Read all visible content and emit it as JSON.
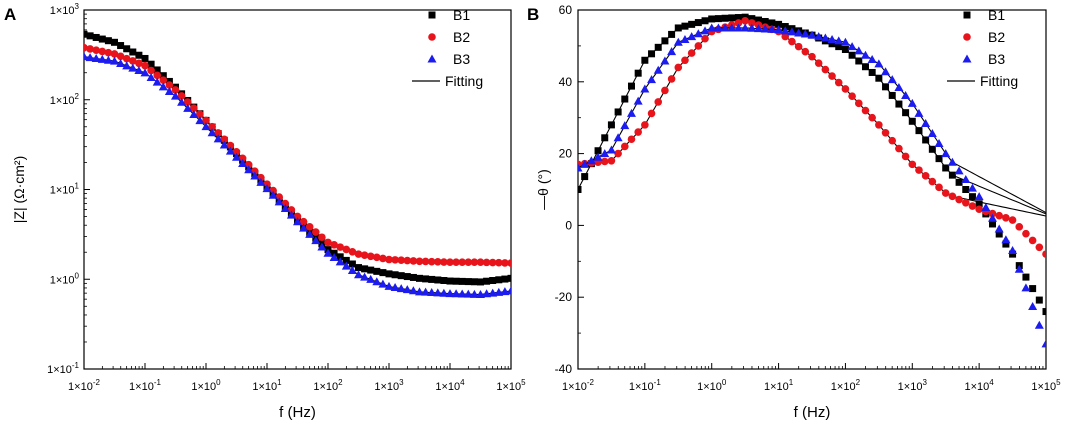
{
  "panels": [
    {
      "letter": "A",
      "chart_data": {
        "type": "scatter",
        "title": "",
        "xlabel": "f (Hz)",
        "ylabel": "|Z| (Ω·cm²)",
        "xscale": "log",
        "yscale": "log",
        "xlim_exp": [
          -2,
          5
        ],
        "ylim_exp": [
          -1,
          3
        ],
        "xticks": [
          {
            "base": "1×10",
            "exp": "-2"
          },
          {
            "base": "1×10",
            "exp": "-1"
          },
          {
            "base": "1×10",
            "exp": "0"
          },
          {
            "base": "1×10",
            "exp": "1"
          },
          {
            "base": "1×10",
            "exp": "2"
          },
          {
            "base": "1×10",
            "exp": "3"
          },
          {
            "base": "1×10",
            "exp": "4"
          },
          {
            "base": "1×10",
            "exp": "5"
          }
        ],
        "yticks": [
          {
            "base": "1×10",
            "exp": "-1"
          },
          {
            "base": "1×10",
            "exp": "0"
          },
          {
            "base": "1×10",
            "exp": "1"
          },
          {
            "base": "1×10",
            "exp": "2"
          },
          {
            "base": "1×10",
            "exp": "3"
          }
        ],
        "legend_position": "top-right",
        "series": [
          {
            "name": "B1",
            "color": "#000000",
            "marker": "square",
            "x_log": [
              -2,
              -1.5,
              -1,
              -0.5,
              0,
              0.5,
              1,
              1.5,
              2,
              2.5,
              3,
              3.5,
              4,
              4.5,
              5
            ],
            "y_log": [
              2.73,
              2.64,
              2.46,
              2.14,
              1.77,
              1.4,
              1.03,
              0.65,
              0.33,
              0.13,
              0.06,
              0.01,
              -0.02,
              -0.03,
              0.01
            ]
          },
          {
            "name": "B2",
            "color": "#e8141b",
            "marker": "circle",
            "x_log": [
              -2,
              -1.5,
              -1,
              -0.5,
              0,
              0.5,
              1,
              1.5,
              2,
              2.5,
              3,
              3.5,
              4,
              4.5,
              5
            ],
            "y_log": [
              2.58,
              2.51,
              2.38,
              2.11,
              1.77,
              1.42,
              1.06,
              0.7,
              0.41,
              0.28,
              0.22,
              0.2,
              0.19,
              0.19,
              0.18
            ]
          },
          {
            "name": "B3",
            "color": "#1c1cf0",
            "marker": "triangle",
            "x_log": [
              -2,
              -1.5,
              -1,
              -0.5,
              0,
              0.5,
              1,
              1.5,
              2,
              2.5,
              3,
              3.5,
              4,
              4.5,
              5
            ],
            "y_log": [
              2.48,
              2.43,
              2.3,
              2.04,
              1.7,
              1.36,
              1.01,
              0.64,
              0.29,
              0.05,
              -0.08,
              -0.14,
              -0.16,
              -0.17,
              -0.13
            ]
          }
        ],
        "fitting": {
          "name": "Fitting",
          "color": "#000000"
        }
      }
    },
    {
      "letter": "B",
      "chart_data": {
        "type": "scatter",
        "title": "",
        "xlabel": "f (Hz)",
        "ylabel": "—θ (°)",
        "xscale": "log",
        "yscale": "linear",
        "xlim_exp": [
          -2,
          5
        ],
        "ylim": [
          -40,
          60
        ],
        "xticks": [
          {
            "base": "1×10",
            "exp": "-2"
          },
          {
            "base": "1×10",
            "exp": "-1"
          },
          {
            "base": "1×10",
            "exp": "0"
          },
          {
            "base": "1×10",
            "exp": "1"
          },
          {
            "base": "1×10",
            "exp": "2"
          },
          {
            "base": "1×10",
            "exp": "3"
          },
          {
            "base": "1×10",
            "exp": "4"
          },
          {
            "base": "1×10",
            "exp": "5"
          }
        ],
        "yticks": [
          "-40",
          "-20",
          "0",
          "20",
          "40",
          "60"
        ],
        "legend_position": "top-right",
        "series": [
          {
            "name": "B1",
            "color": "#000000",
            "marker": "square",
            "x_log": [
              -2,
              -1.5,
              -1,
              -0.5,
              0,
              0.5,
              1,
              1.5,
              2,
              2.5,
              3,
              3.5,
              4,
              4.5,
              5
            ],
            "y": [
              10,
              28,
              46,
              55,
              57.5,
              58,
              56,
              53,
              49,
              41,
              29,
              16,
              6,
              -8,
              -24
            ]
          },
          {
            "name": "B2",
            "color": "#e8141b",
            "marker": "circle",
            "x_log": [
              -2,
              -1.5,
              -1,
              -0.5,
              0,
              0.5,
              1,
              1.5,
              2,
              2.5,
              3,
              3.5,
              4,
              4.5,
              5
            ],
            "y": [
              17,
              18,
              28,
              44,
              54,
              57,
              54,
              47,
              38,
              28,
              17,
              9,
              4.5,
              1.5,
              -8
            ]
          },
          {
            "name": "B3",
            "color": "#1c1cf0",
            "marker": "triangle",
            "x_log": [
              -2,
              -1.5,
              -1,
              -0.5,
              0,
              0.5,
              1,
              1.5,
              2,
              2.5,
              3,
              3.5,
              4,
              4.5,
              5
            ],
            "y": [
              16,
              21,
              38,
              51,
              55,
              55,
              54.5,
              53,
              51,
              45,
              34,
              20,
              8,
              -7,
              -33
            ]
          }
        ],
        "fitting": {
          "name": "Fitting",
          "color": "#000000"
        }
      }
    }
  ]
}
